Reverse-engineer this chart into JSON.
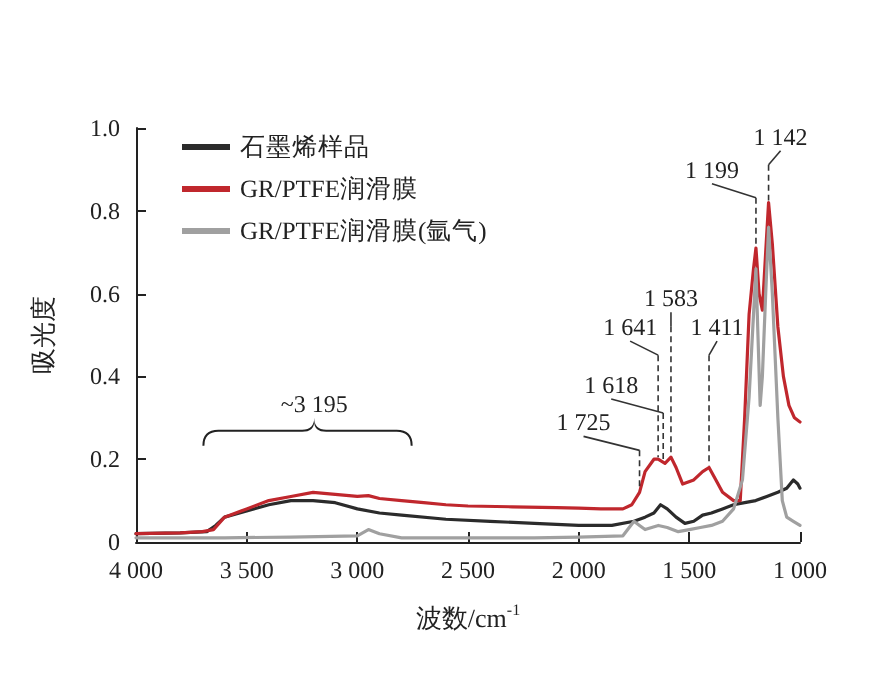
{
  "chart_data": {
    "type": "line",
    "xlabel": "波数/cm$^{-1}$",
    "ylabel": "吸光度",
    "xlim": [
      4000,
      1000
    ],
    "xticks": [
      {
        "value": 4000,
        "label": "4 000"
      },
      {
        "value": 3500,
        "label": "3 500"
      },
      {
        "value": 3000,
        "label": "3 000"
      },
      {
        "value": 2500,
        "label": "2 500"
      },
      {
        "value": 2000,
        "label": "2 000"
      },
      {
        "value": 1500,
        "label": "1 500"
      },
      {
        "value": 1000,
        "label": "1 000"
      }
    ],
    "ylim": [
      0,
      1
    ],
    "yticks": [
      0,
      0.2,
      0.4,
      0.6,
      0.8,
      {
        "value": 1,
        "label": "1.0"
      }
    ],
    "grid": false,
    "legend": "top left",
    "marker": "none",
    "line_style": "solid",
    "series": [
      {
        "name": "石墨烯样品",
        "color": "#2b2b2b",
        "x": [
          4000,
          3800,
          3680,
          3640,
          3600,
          3500,
          3400,
          3300,
          3200,
          3100,
          3000,
          2900,
          2800,
          2600,
          2400,
          2200,
          2000,
          1850,
          1750,
          1700,
          1660,
          1630,
          1600,
          1560,
          1520,
          1480,
          1440,
          1400,
          1350,
          1300,
          1250,
          1200,
          1150,
          1100,
          1060,
          1030,
          1010,
          1000
        ],
        "values": [
          0.02,
          0.022,
          0.025,
          0.04,
          0.06,
          0.075,
          0.09,
          0.1,
          0.1,
          0.095,
          0.08,
          0.07,
          0.065,
          0.055,
          0.05,
          0.045,
          0.04,
          0.04,
          0.05,
          0.06,
          0.07,
          0.09,
          0.08,
          0.06,
          0.045,
          0.05,
          0.065,
          0.07,
          0.08,
          0.09,
          0.095,
          0.1,
          0.11,
          0.12,
          0.13,
          0.15,
          0.14,
          0.13
        ]
      },
      {
        "name": "GR/PTFE润滑膜",
        "color": "#c0272d",
        "x": [
          4000,
          3800,
          3700,
          3650,
          3600,
          3500,
          3400,
          3300,
          3200,
          3100,
          3000,
          2950,
          2900,
          2800,
          2700,
          2600,
          2500,
          2300,
          2100,
          2000,
          1900,
          1800,
          1760,
          1725,
          1700,
          1660,
          1641,
          1610,
          1583,
          1560,
          1530,
          1480,
          1440,
          1411,
          1380,
          1350,
          1300,
          1270,
          1250,
          1230,
          1210,
          1199,
          1185,
          1170,
          1155,
          1142,
          1125,
          1100,
          1075,
          1050,
          1025,
          1000
        ],
        "values": [
          0.02,
          0.022,
          0.025,
          0.03,
          0.06,
          0.08,
          0.1,
          0.11,
          0.12,
          0.115,
          0.11,
          0.112,
          0.105,
          0.1,
          0.095,
          0.09,
          0.087,
          0.085,
          0.083,
          0.082,
          0.08,
          0.08,
          0.09,
          0.12,
          0.17,
          0.2,
          0.2,
          0.19,
          0.205,
          0.18,
          0.14,
          0.15,
          0.17,
          0.18,
          0.15,
          0.12,
          0.1,
          0.1,
          0.3,
          0.55,
          0.66,
          0.71,
          0.6,
          0.56,
          0.7,
          0.82,
          0.72,
          0.52,
          0.4,
          0.33,
          0.3,
          0.29
        ]
      },
      {
        "name": "GR/PTFE润滑膜(氩气)",
        "color": "#a0a0a0",
        "x": [
          4000,
          3600,
          3300,
          3000,
          2950,
          2900,
          2800,
          2500,
          2200,
          2000,
          1800,
          1750,
          1725,
          1700,
          1640,
          1600,
          1550,
          1500,
          1450,
          1400,
          1350,
          1300,
          1260,
          1230,
          1210,
          1199,
          1190,
          1180,
          1170,
          1155,
          1142,
          1125,
          1100,
          1080,
          1060,
          1030,
          1000
        ],
        "values": [
          0.01,
          0.01,
          0.012,
          0.015,
          0.03,
          0.02,
          0.01,
          0.01,
          0.01,
          0.012,
          0.015,
          0.05,
          0.04,
          0.03,
          0.04,
          0.035,
          0.025,
          0.03,
          0.035,
          0.04,
          0.05,
          0.08,
          0.15,
          0.35,
          0.55,
          0.66,
          0.5,
          0.33,
          0.4,
          0.6,
          0.76,
          0.6,
          0.3,
          0.1,
          0.06,
          0.05,
          0.04
        ]
      }
    ],
    "annotations": [
      "~3 195",
      {
        "text": "1 725",
        "x": 1725,
        "y": 0.12
      },
      {
        "text": "1 618",
        "x": 1618,
        "y": 0.19
      },
      {
        "text": "1 641",
        "x": 1641,
        "y": 0.2
      },
      {
        "text": "1 583",
        "x": 1583,
        "y": 0.205
      },
      {
        "text": "1 411",
        "x": 1411,
        "y": 0.18
      },
      {
        "text": "1 199",
        "x": 1199,
        "y": 0.71
      },
      {
        "text": "1 142",
        "x": 1142,
        "y": 0.82
      }
    ]
  }
}
